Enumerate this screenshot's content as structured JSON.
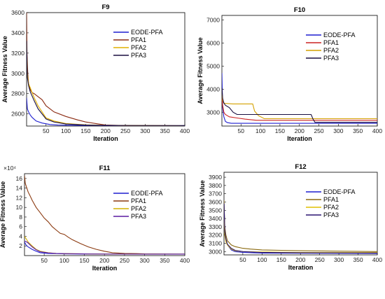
{
  "chart_data": [
    {
      "type": "line",
      "title": "F9",
      "xlabel": "Iteration",
      "ylabel": "Average Fitness Value",
      "xlim": [
        1,
        400
      ],
      "ylim": [
        2480,
        3600
      ],
      "xticks": [
        50,
        100,
        150,
        200,
        250,
        300,
        350,
        400
      ],
      "yticks": [
        2600,
        2800,
        3000,
        3200,
        3400,
        3600
      ],
      "tick_labels_y": [
        "2600",
        "2800",
        "3000",
        "3200",
        "3400",
        "3600"
      ],
      "multiplier_label": "",
      "legend_position": "top-right",
      "series": [
        {
          "name": "EODE-PFA",
          "color": "#1f1fd0",
          "x": [
            1,
            3,
            6,
            10,
            15,
            25,
            40,
            60,
            80,
            100,
            150,
            200,
            300,
            400
          ],
          "values": [
            2760,
            2650,
            2620,
            2590,
            2565,
            2530,
            2510,
            2495,
            2490,
            2488,
            2486,
            2485,
            2485,
            2485
          ]
        },
        {
          "name": "PFA1",
          "color": "#8b2b12",
          "x": [
            1,
            2,
            4,
            6,
            10,
            15,
            20,
            30,
            40,
            50,
            70,
            100,
            130,
            150,
            200,
            250,
            300,
            400
          ],
          "values": [
            3600,
            3200,
            3000,
            2900,
            2840,
            2810,
            2800,
            2770,
            2740,
            2680,
            2620,
            2575,
            2540,
            2520,
            2490,
            2485,
            2484,
            2483
          ]
        },
        {
          "name": "PFA2",
          "color": "#e0b000",
          "x": [
            1,
            3,
            6,
            10,
            20,
            30,
            50,
            70,
            100,
            150,
            200,
            300,
            400
          ],
          "values": [
            3300,
            3000,
            2900,
            2860,
            2760,
            2680,
            2560,
            2530,
            2505,
            2492,
            2487,
            2485,
            2484
          ]
        },
        {
          "name": "PFA3",
          "color": "#1a0f40",
          "x": [
            1,
            3,
            6,
            10,
            20,
            30,
            50,
            70,
            100,
            150,
            200,
            300,
            400
          ],
          "values": [
            3320,
            2960,
            2880,
            2820,
            2730,
            2650,
            2550,
            2520,
            2500,
            2490,
            2486,
            2485,
            2484
          ]
        }
      ]
    },
    {
      "type": "line",
      "title": "F10",
      "xlabel": "Iteration",
      "ylabel": "Average Fitness Value",
      "xlim": [
        1,
        400
      ],
      "ylim": [
        2400,
        7200
      ],
      "xticks": [
        50,
        100,
        150,
        200,
        250,
        300,
        350,
        400
      ],
      "yticks": [
        3000,
        4000,
        5000,
        6000,
        7000
      ],
      "tick_labels_y": [
        "3000",
        "4000",
        "5000",
        "6000",
        "7000"
      ],
      "multiplier_label": "",
      "legend_position": "top-right",
      "series": [
        {
          "name": "EODE-PFA",
          "color": "#1f1fd0",
          "x": [
            1,
            3,
            6,
            10,
            15,
            25,
            400
          ],
          "values": [
            4700,
            3200,
            2800,
            2600,
            2550,
            2520,
            2520
          ]
        },
        {
          "name": "PFA1",
          "color": "#cc2222",
          "x": [
            1,
            3,
            6,
            10,
            15,
            20,
            40,
            60,
            90,
            400
          ],
          "values": [
            3700,
            3300,
            3000,
            2900,
            2850,
            2800,
            2750,
            2700,
            2650,
            2650
          ]
        },
        {
          "name": "PFA2",
          "color": "#d4a000",
          "x": [
            1,
            3,
            6,
            10,
            20,
            30,
            80,
            85,
            95,
            110,
            400
          ],
          "values": [
            3800,
            3500,
            3400,
            3380,
            3370,
            3360,
            3360,
            3050,
            2850,
            2720,
            2720
          ]
        },
        {
          "name": "PFA3",
          "color": "#1a0f40",
          "x": [
            1,
            3,
            6,
            10,
            20,
            30,
            40,
            230,
            235,
            240,
            400
          ],
          "values": [
            4050,
            3600,
            3400,
            3300,
            3200,
            3000,
            2900,
            2900,
            2700,
            2560,
            2560
          ]
        }
      ]
    },
    {
      "type": "line",
      "title": "F11",
      "xlabel": "Iteration",
      "ylabel": "Average Fitness Value",
      "xlim": [
        1,
        400
      ],
      "ylim": [
        0,
        17
      ],
      "xticks": [
        50,
        100,
        150,
        200,
        250,
        300,
        350,
        400
      ],
      "yticks": [
        2,
        4,
        6,
        8,
        10,
        12,
        14,
        16
      ],
      "tick_labels_y": [
        "2",
        "4",
        "6",
        "8",
        "10",
        "12",
        "14",
        "16"
      ],
      "multiplier_label": "×10⁴",
      "legend_position": "top-right",
      "series": [
        {
          "name": "EODE-PFA",
          "color": "#1f1fd0",
          "x": [
            1,
            5,
            10,
            20,
            30,
            40,
            60,
            80,
            100,
            150,
            200,
            300,
            400
          ],
          "values": [
            2.8,
            2.2,
            1.8,
            1.3,
            0.9,
            0.6,
            0.45,
            0.4,
            0.35,
            0.32,
            0.3,
            0.3,
            0.3
          ]
        },
        {
          "name": "PFA1",
          "color": "#8b3a10",
          "x": [
            1,
            3,
            6,
            10,
            15,
            20,
            30,
            40,
            50,
            60,
            70,
            80,
            90,
            100,
            110,
            120,
            140,
            160,
            180,
            200,
            220,
            250,
            280,
            300,
            350,
            400
          ],
          "values": [
            16.6,
            15.0,
            14.2,
            13.2,
            12.4,
            11.5,
            10.0,
            8.9,
            7.8,
            7.0,
            6.0,
            5.3,
            4.6,
            4.4,
            3.8,
            3.3,
            2.5,
            1.8,
            1.3,
            0.9,
            0.6,
            0.45,
            0.4,
            0.35,
            0.32,
            0.3
          ]
        },
        {
          "name": "PFA2",
          "color": "#d4b000",
          "x": [
            1,
            5,
            10,
            20,
            30,
            40,
            60,
            80,
            100,
            150,
            200,
            300,
            400
          ],
          "values": [
            4.0,
            3.5,
            2.8,
            2.0,
            1.3,
            0.9,
            0.6,
            0.45,
            0.4,
            0.35,
            0.32,
            0.3,
            0.3
          ]
        },
        {
          "name": "PFA3",
          "color": "#5a1aa0",
          "x": [
            1,
            5,
            10,
            20,
            30,
            40,
            60,
            80,
            100,
            150,
            200,
            300,
            400
          ],
          "values": [
            3.0,
            2.9,
            2.6,
            1.8,
            1.2,
            0.8,
            0.55,
            0.45,
            0.4,
            0.35,
            0.32,
            0.3,
            0.3
          ]
        }
      ]
    },
    {
      "type": "line",
      "title": "F12",
      "xlabel": "Iteration",
      "ylabel": "Average Fitness Value",
      "xlim": [
        1,
        400
      ],
      "ylim": [
        2960,
        3960
      ],
      "xticks": [
        50,
        100,
        150,
        200,
        250,
        300,
        350,
        400
      ],
      "yticks": [
        3000,
        3100,
        3200,
        3300,
        3400,
        3500,
        3600,
        3700,
        3800,
        3900
      ],
      "tick_labels_y": [
        "3000",
        "3100",
        "3200",
        "3300",
        "3400",
        "3500",
        "3600",
        "3700",
        "3800",
        "3900"
      ],
      "multiplier_label": "",
      "legend_position": "top-right",
      "series": [
        {
          "name": "EODE-PFA",
          "color": "#1f1fd0",
          "x": [
            1,
            3,
            6,
            10,
            20,
            30,
            50,
            80,
            100,
            200,
            400
          ],
          "values": [
            3600,
            3300,
            3150,
            3080,
            3020,
            3000,
            2990,
            2985,
            2982,
            2980,
            2978
          ]
        },
        {
          "name": "PFA1",
          "color": "#8b6a10",
          "x": [
            1,
            3,
            6,
            10,
            20,
            30,
            50,
            70,
            100,
            150,
            200,
            300,
            400
          ],
          "values": [
            3620,
            3300,
            3200,
            3130,
            3080,
            3060,
            3040,
            3030,
            3020,
            3015,
            3010,
            3005,
            3000
          ]
        },
        {
          "name": "PFA2",
          "color": "#e0c000",
          "x": [
            1,
            3,
            6,
            10,
            20,
            30,
            50,
            100,
            200,
            400
          ],
          "values": [
            3400,
            3200,
            3120,
            3080,
            3030,
            3010,
            3000,
            2995,
            2990,
            2988
          ]
        },
        {
          "name": "PFA3",
          "color": "#2a1470",
          "x": [
            1,
            3,
            6,
            10,
            20,
            30,
            50,
            100,
            200,
            400
          ],
          "values": [
            3580,
            3250,
            3150,
            3090,
            3040,
            3015,
            3000,
            2990,
            2985,
            2983
          ]
        }
      ]
    }
  ]
}
